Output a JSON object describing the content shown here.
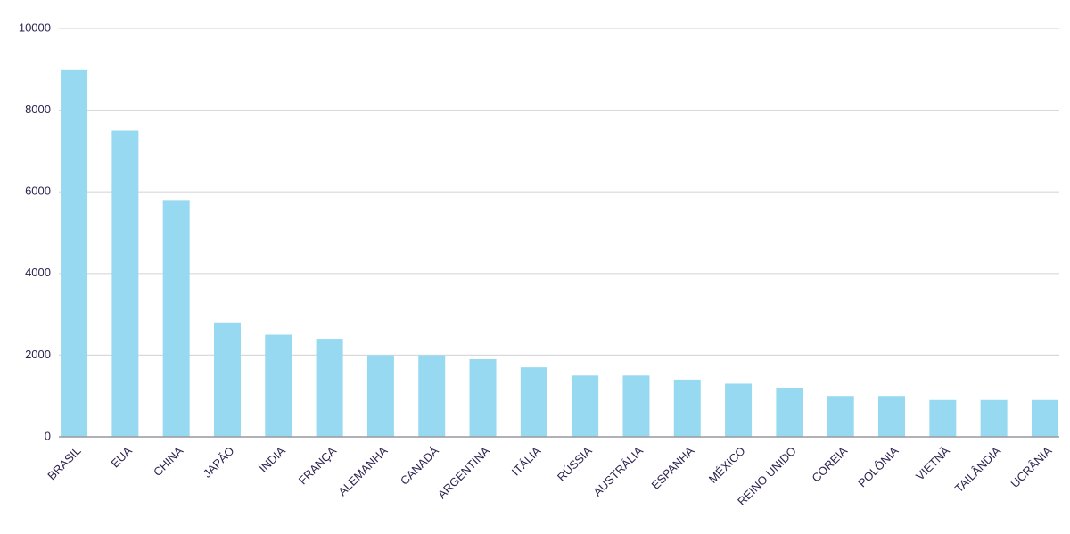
{
  "chart_data": {
    "type": "bar",
    "categories": [
      "BRASIL",
      "EUA",
      "CHINA",
      "JAPÃO",
      "ÍNDIA",
      "FRANÇA",
      "ALEMANHA",
      "CANADÁ",
      "ARGENTINA",
      "ITÁLIA",
      "RÚSSIA",
      "AUSTRÁLIA",
      "ESPANHA",
      "MÉXICO",
      "REINO UNIDO",
      "COREIA",
      "POLÔNIA",
      "VIETNÃ",
      "TAILÂNDIA",
      "UCRÂNIA"
    ],
    "values": [
      9000,
      7500,
      5800,
      2800,
      2500,
      2400,
      2000,
      2000,
      1900,
      1700,
      1500,
      1500,
      1400,
      1300,
      1200,
      1000,
      1000,
      900,
      900,
      900
    ],
    "color": "#97d9f0",
    "ylim": [
      0,
      10000
    ],
    "yticks": [
      0,
      2000,
      4000,
      6000,
      8000,
      10000
    ],
    "grid": true
  }
}
